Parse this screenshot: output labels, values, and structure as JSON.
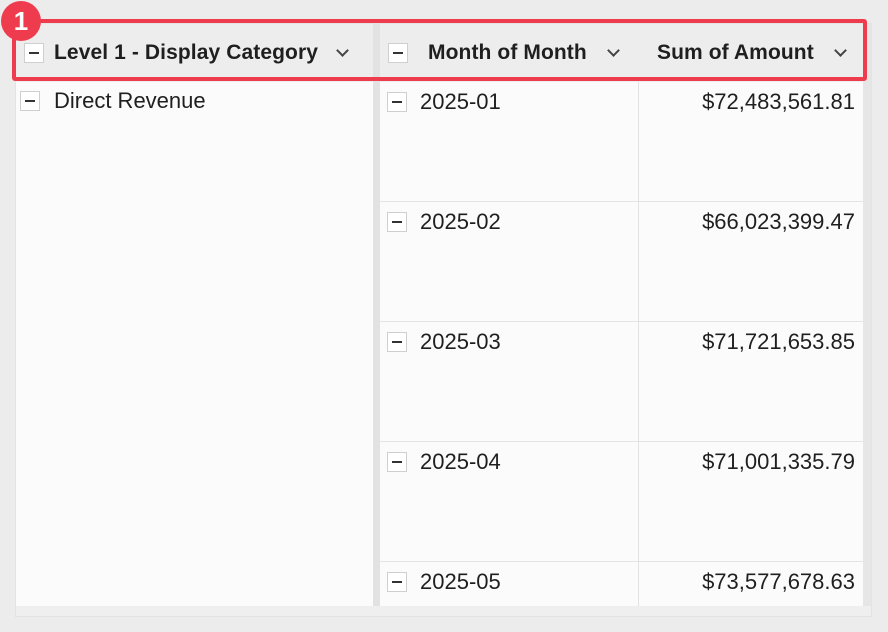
{
  "annotation": {
    "badge_number": "1",
    "color": "#ee3c4e"
  },
  "header": {
    "columns": [
      {
        "label": "Level 1 - Display Category",
        "icon": "chevron-down-icon"
      },
      {
        "label": "Month of Month",
        "icon": "chevron-down-icon"
      },
      {
        "label": "Sum of Amount",
        "icon": "chevron-down-icon"
      }
    ]
  },
  "category": {
    "label": "Direct Revenue"
  },
  "rows": [
    {
      "month": "2025-01",
      "amount": "$72,483,561.81"
    },
    {
      "month": "2025-02",
      "amount": "$66,023,399.47"
    },
    {
      "month": "2025-03",
      "amount": "$71,721,653.85"
    },
    {
      "month": "2025-04",
      "amount": "$71,001,335.79"
    },
    {
      "month": "2025-05",
      "amount": "$73,577,678.63"
    }
  ]
}
